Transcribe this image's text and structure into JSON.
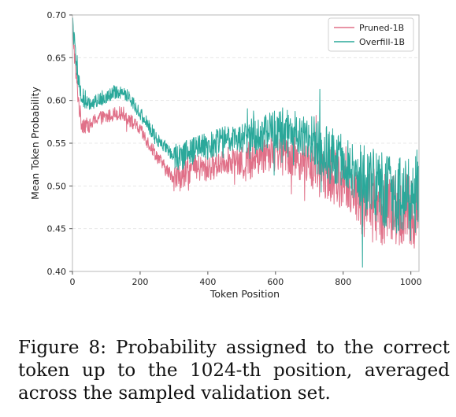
{
  "chart_data": {
    "type": "line",
    "title": "",
    "xlabel": "Token Position",
    "ylabel": "Mean Token Probability",
    "xlim": [
      0,
      1024
    ],
    "ylim": [
      0.4,
      0.7
    ],
    "x_ticks": [
      0,
      200,
      400,
      600,
      800,
      1000
    ],
    "y_ticks": [
      0.4,
      0.45,
      0.5,
      0.55,
      0.6,
      0.65,
      0.7
    ],
    "x_tick_labels": [
      "0",
      "200",
      "400",
      "600",
      "800",
      "1000"
    ],
    "y_tick_labels": [
      "0.40",
      "0.45",
      "0.50",
      "0.55",
      "0.60",
      "0.65",
      "0.70"
    ],
    "grid": "horizontal dashed",
    "legend_position": "top-right",
    "x": [
      0,
      10,
      25,
      50,
      75,
      100,
      125,
      150,
      175,
      200,
      225,
      250,
      275,
      300,
      325,
      350,
      375,
      400,
      425,
      450,
      475,
      500,
      525,
      550,
      575,
      600,
      625,
      650,
      675,
      700,
      725,
      750,
      775,
      800,
      825,
      850,
      875,
      900,
      925,
      950,
      975,
      1000,
      1024
    ],
    "series": [
      {
        "name": "Pruned-1B",
        "color": "#e07088",
        "values": [
          0.69,
          0.63,
          0.575,
          0.57,
          0.58,
          0.58,
          0.585,
          0.585,
          0.575,
          0.565,
          0.55,
          0.535,
          0.52,
          0.51,
          0.51,
          0.52,
          0.52,
          0.52,
          0.525,
          0.53,
          0.53,
          0.525,
          0.53,
          0.535,
          0.54,
          0.54,
          0.54,
          0.535,
          0.53,
          0.525,
          0.52,
          0.515,
          0.51,
          0.505,
          0.495,
          0.485,
          0.48,
          0.475,
          0.475,
          0.47,
          0.47,
          0.47,
          0.47
        ]
      },
      {
        "name": "Overfill-1B",
        "color": "#2aa89a",
        "values": [
          0.695,
          0.645,
          0.605,
          0.595,
          0.6,
          0.605,
          0.61,
          0.61,
          0.6,
          0.585,
          0.57,
          0.555,
          0.545,
          0.535,
          0.535,
          0.54,
          0.545,
          0.545,
          0.55,
          0.555,
          0.555,
          0.555,
          0.555,
          0.56,
          0.565,
          0.565,
          0.565,
          0.565,
          0.56,
          0.555,
          0.545,
          0.54,
          0.535,
          0.53,
          0.52,
          0.51,
          0.505,
          0.5,
          0.495,
          0.49,
          0.49,
          0.49,
          0.49
        ]
      }
    ]
  },
  "caption": "Figure 8: Probability assigned to the correct token up to the 1024-th position, averaged across the sampled validation set."
}
